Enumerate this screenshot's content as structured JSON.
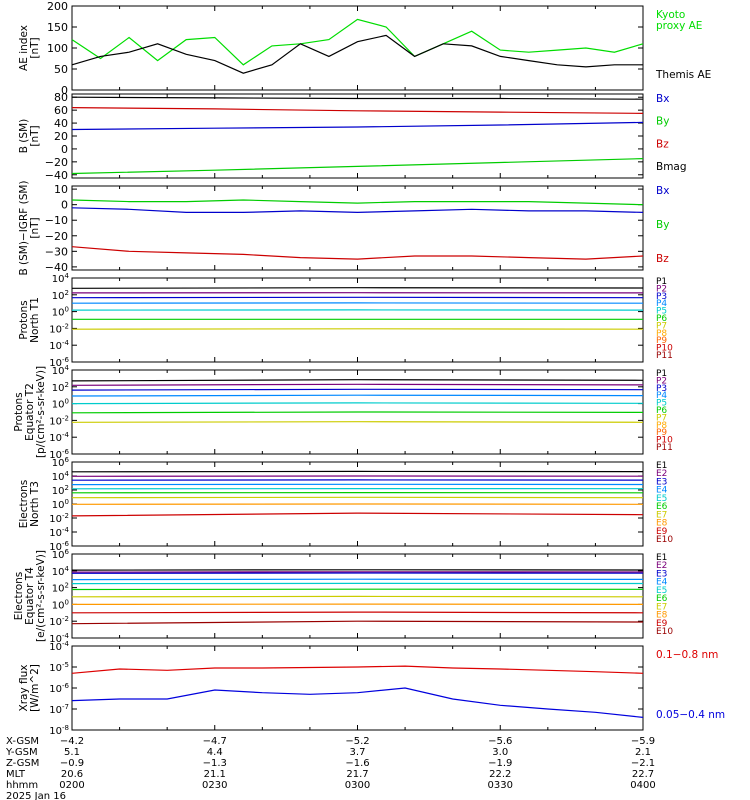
{
  "chart_data": [
    {
      "type": "line",
      "ylabel": "AE index\n[nT]",
      "ylim": [
        0,
        200
      ],
      "yticks": [
        0,
        50,
        100,
        150,
        200
      ],
      "yticklabels": [
        "0",
        "50",
        "100",
        "150",
        "200"
      ],
      "series": [
        {
          "name": "Kyoto\nproxy AE",
          "color": "#00dd00",
          "t": [
            0,
            6,
            12,
            18,
            24,
            30,
            36,
            42,
            48,
            54,
            60,
            66,
            72,
            78,
            84,
            90,
            96,
            102,
            108,
            114,
            120
          ],
          "values": [
            120,
            75,
            125,
            70,
            120,
            125,
            60,
            105,
            110,
            120,
            168,
            150,
            80,
            110,
            140,
            95,
            90,
            95,
            100,
            90,
            110
          ]
        },
        {
          "name": "Themis AE",
          "color": "#000000",
          "t": [
            0,
            6,
            12,
            18,
            24,
            30,
            36,
            42,
            48,
            54,
            60,
            66,
            72,
            78,
            84,
            90,
            96,
            102,
            108,
            114,
            120
          ],
          "values": [
            60,
            80,
            90,
            110,
            85,
            70,
            40,
            60,
            110,
            80,
            115,
            130,
            80,
            110,
            105,
            80,
            70,
            60,
            55,
            60,
            60
          ]
        }
      ]
    },
    {
      "type": "line",
      "ylabel": "B (SM)\n[nT]",
      "ylim": [
        -45,
        85
      ],
      "yticks": [
        -40,
        -20,
        0,
        20,
        40,
        60,
        80
      ],
      "yticklabels": [
        "−40",
        "−20",
        "0",
        "20",
        "40",
        "60",
        "80"
      ],
      "series": [
        {
          "name": "Bx",
          "color": "#0000cc",
          "t": [
            0,
            30,
            60,
            90,
            120
          ],
          "values": [
            30,
            32,
            34,
            37,
            41
          ]
        },
        {
          "name": "By",
          "color": "#00cc00",
          "t": [
            0,
            30,
            60,
            90,
            120
          ],
          "values": [
            -38,
            -33,
            -27,
            -21,
            -15
          ]
        },
        {
          "name": "Bz",
          "color": "#cc0000",
          "t": [
            0,
            30,
            60,
            90,
            120
          ],
          "values": [
            64,
            62,
            59,
            57,
            55
          ]
        },
        {
          "name": "Bmag",
          "color": "#000000",
          "t": [
            0,
            30,
            60,
            90,
            120
          ],
          "values": [
            80,
            79,
            78,
            78,
            77
          ]
        }
      ]
    },
    {
      "type": "line",
      "ylabel": "B (SM)−IGRF (SM)\n[nT]",
      "ylim": [
        -42,
        12
      ],
      "yticks": [
        -40,
        -30,
        -20,
        -10,
        0,
        10
      ],
      "yticklabels": [
        "−40",
        "−30",
        "−20",
        "−10",
        "0",
        "10"
      ],
      "series": [
        {
          "name": "Bx",
          "color": "#0000cc",
          "t": [
            0,
            12,
            24,
            36,
            48,
            60,
            72,
            84,
            96,
            108,
            120
          ],
          "values": [
            -2,
            -3,
            -5,
            -5,
            -4,
            -5,
            -4,
            -3,
            -4,
            -4,
            -5
          ]
        },
        {
          "name": "By",
          "color": "#00cc00",
          "t": [
            0,
            12,
            24,
            36,
            48,
            60,
            72,
            84,
            96,
            108,
            120
          ],
          "values": [
            3,
            2,
            2,
            3,
            2,
            1,
            2,
            2,
            2,
            1,
            0
          ]
        },
        {
          "name": "Bz",
          "color": "#cc0000",
          "t": [
            0,
            12,
            24,
            36,
            48,
            60,
            72,
            84,
            96,
            108,
            120
          ],
          "values": [
            -27,
            -30,
            -31,
            -32,
            -34,
            -35,
            -33,
            -33,
            -34,
            -35,
            -33
          ]
        }
      ]
    },
    {
      "type": "line",
      "ylabel": "Protons\nNorth T1",
      "ylog": true,
      "ylim": [
        1e-06,
        10000.0
      ],
      "yticks": [
        1e-06,
        0.0001,
        0.01,
        1.0,
        100.0,
        10000.0
      ],
      "yticklabels": [
        "10^-6",
        "10^-4",
        "10^-2",
        "10^0",
        "10^2",
        "10^4"
      ],
      "series": [
        {
          "name": "P1",
          "color": "#000000",
          "t": [
            0,
            60,
            120
          ],
          "values": [
            600,
            700,
            650
          ]
        },
        {
          "name": "P2",
          "color": "#7a007a",
          "t": [
            0,
            60,
            120
          ],
          "values": [
            170,
            180,
            170
          ]
        },
        {
          "name": "P3",
          "color": "#0000cc",
          "t": [
            0,
            60,
            120
          ],
          "values": [
            45,
            50,
            45
          ]
        },
        {
          "name": "P4",
          "color": "#0088ff",
          "t": [
            0,
            60,
            120
          ],
          "values": [
            10,
            11,
            10
          ]
        },
        {
          "name": "P5",
          "color": "#00cccc",
          "t": [
            0,
            60,
            120
          ],
          "values": [
            1.5,
            1.6,
            1.5
          ]
        },
        {
          "name": "P6",
          "color": "#00cc00",
          "t": [
            0,
            60,
            120
          ],
          "values": [
            0.12,
            0.12,
            0.12
          ]
        },
        {
          "name": "P7",
          "color": "#cccc00",
          "t": [
            0,
            60,
            120
          ],
          "values": [
            0.008,
            0.009,
            0.008
          ]
        },
        {
          "name": "P8",
          "color": "#ffaa00",
          "t": [],
          "values": []
        },
        {
          "name": "P9",
          "color": "#ff6600",
          "t": [],
          "values": []
        },
        {
          "name": "P10",
          "color": "#cc0000",
          "t": [],
          "values": []
        },
        {
          "name": "P11",
          "color": "#990000",
          "t": [],
          "values": []
        }
      ]
    },
    {
      "type": "line",
      "ylabel": "Protons\nEquator T2\n[p/(cm²-s-sr-keV)]",
      "ylog": true,
      "ylim": [
        1e-06,
        10000.0
      ],
      "yticks": [
        1e-06,
        0.0001,
        0.01,
        1.0,
        100.0,
        10000.0
      ],
      "yticklabels": [
        "10^-6",
        "10^-4",
        "10^-2",
        "10^0",
        "10^2",
        "10^4"
      ],
      "series": [
        {
          "name": "P1",
          "color": "#000000",
          "t": [
            0,
            60,
            120
          ],
          "values": [
            500,
            700,
            600
          ]
        },
        {
          "name": "P2",
          "color": "#7a007a",
          "t": [
            0,
            60,
            120
          ],
          "values": [
            150,
            200,
            170
          ]
        },
        {
          "name": "P3",
          "color": "#0000cc",
          "t": [
            0,
            60,
            120
          ],
          "values": [
            40,
            50,
            45
          ]
        },
        {
          "name": "P4",
          "color": "#0088ff",
          "t": [
            0,
            60,
            120
          ],
          "values": [
            8,
            10,
            9
          ]
        },
        {
          "name": "P5",
          "color": "#00cccc",
          "t": [
            0,
            60,
            120
          ],
          "values": [
            1,
            1.2,
            1.1
          ]
        },
        {
          "name": "P6",
          "color": "#00cc00",
          "t": [
            0,
            60,
            120
          ],
          "values": [
            0.08,
            0.1,
            0.09
          ]
        },
        {
          "name": "P7",
          "color": "#cccc00",
          "t": [
            0,
            60,
            120
          ],
          "values": [
            0.006,
            0.007,
            0.006
          ]
        },
        {
          "name": "P8",
          "color": "#ffaa00",
          "t": [],
          "values": []
        },
        {
          "name": "P9",
          "color": "#ff6600",
          "t": [],
          "values": []
        },
        {
          "name": "P10",
          "color": "#cc0000",
          "t": [],
          "values": []
        },
        {
          "name": "P11",
          "color": "#990000",
          "t": [],
          "values": []
        }
      ]
    },
    {
      "type": "line",
      "ylabel": "Electrons\nNorth T3",
      "ylog": true,
      "ylim": [
        1e-06,
        1000000.0
      ],
      "yticks": [
        1e-06,
        0.0001,
        0.01,
        1.0,
        100.0,
        10000.0,
        1000000.0
      ],
      "yticklabels": [
        "10^-6",
        "10^-4",
        "10^-2",
        "10^0",
        "10^2",
        "10^4",
        "10^6"
      ],
      "series": [
        {
          "name": "E1",
          "color": "#000000",
          "t": [
            0,
            60,
            120
          ],
          "values": [
            40000,
            45000,
            42000
          ]
        },
        {
          "name": "E2",
          "color": "#7a007a",
          "t": [
            0,
            60,
            120
          ],
          "values": [
            9000,
            10000,
            9500
          ]
        },
        {
          "name": "E3",
          "color": "#0000cc",
          "t": [
            0,
            60,
            120
          ],
          "values": [
            2500,
            2800,
            2600
          ]
        },
        {
          "name": "E4",
          "color": "#0088ff",
          "t": [
            0,
            60,
            120
          ],
          "values": [
            600,
            650,
            620
          ]
        },
        {
          "name": "E5",
          "color": "#00cccc",
          "t": [
            0,
            60,
            120
          ],
          "values": [
            150,
            160,
            155
          ]
        },
        {
          "name": "E6",
          "color": "#00cc00",
          "t": [
            0,
            60,
            120
          ],
          "values": [
            40,
            42,
            40
          ]
        },
        {
          "name": "E7",
          "color": "#cccc00",
          "t": [
            0,
            60,
            120
          ],
          "values": [
            8,
            9,
            8
          ]
        },
        {
          "name": "E8",
          "color": "#ff9900",
          "t": [
            0,
            60,
            120
          ],
          "values": [
            0.9,
            1,
            0.9
          ]
        },
        {
          "name": "E9",
          "color": "#cc0000",
          "t": [
            0,
            60,
            120
          ],
          "values": [
            0.02,
            0.05,
            0.03
          ]
        },
        {
          "name": "E10",
          "color": "#990000",
          "t": [],
          "values": []
        }
      ]
    },
    {
      "type": "line",
      "ylabel": "Electrons\nEquator T4\n[e/(cm²-s-sr-keV)]",
      "ylog": true,
      "ylim": [
        0.0001,
        1000000.0
      ],
      "yticks": [
        0.0001,
        0.01,
        1.0,
        100.0,
        10000.0,
        1000000.0
      ],
      "yticklabels": [
        "10^-4",
        "10^-2",
        "10^0",
        "10^2",
        "10^4",
        "10^6"
      ],
      "series": [
        {
          "name": "E1",
          "color": "#000000",
          "t": [
            0,
            60,
            120
          ],
          "values": [
            12000,
            13000,
            12500
          ]
        },
        {
          "name": "E2",
          "color": "#7a007a",
          "t": [
            0,
            60,
            120
          ],
          "values": [
            7000,
            7500,
            7200
          ]
        },
        {
          "name": "E3",
          "color": "#0000cc",
          "t": [
            0,
            60,
            120
          ],
          "values": [
            5000,
            5500,
            5200
          ]
        },
        {
          "name": "E4",
          "color": "#0088ff",
          "t": [
            0,
            60,
            120
          ],
          "values": [
            900,
            1000,
            950
          ]
        },
        {
          "name": "E5",
          "color": "#00cccc",
          "t": [
            0,
            60,
            120
          ],
          "values": [
            300,
            320,
            310
          ]
        },
        {
          "name": "E6",
          "color": "#00cc00",
          "t": [
            0,
            60,
            120
          ],
          "values": [
            60,
            65,
            62
          ]
        },
        {
          "name": "E7",
          "color": "#cccc00",
          "t": [
            0,
            60,
            120
          ],
          "values": [
            8,
            9,
            8
          ]
        },
        {
          "name": "E8",
          "color": "#ff9900",
          "t": [
            0,
            60,
            120
          ],
          "values": [
            1,
            1.1,
            1
          ]
        },
        {
          "name": "E9",
          "color": "#cc0000",
          "t": [
            0,
            60,
            120
          ],
          "values": [
            0.1,
            0.12,
            0.1
          ]
        },
        {
          "name": "E10",
          "color": "#990000",
          "t": [
            0,
            60,
            120
          ],
          "values": [
            0.005,
            0.01,
            0.008
          ]
        }
      ]
    },
    {
      "type": "line",
      "ylabel": "Xray flux\n[W/m^2]",
      "ylog": true,
      "ylim": [
        1e-08,
        0.0001
      ],
      "yticks": [
        1e-08,
        1e-07,
        1e-06,
        1e-05,
        0.0001
      ],
      "yticklabels": [
        "10^-8",
        "10^-7",
        "10^-6",
        "10^-5",
        "10^-4"
      ],
      "series": [
        {
          "name": "0.1−0.8 nm",
          "color": "#dd0000",
          "t": [
            0,
            10,
            20,
            30,
            40,
            50,
            60,
            70,
            80,
            90,
            100,
            110,
            120
          ],
          "values": [
            5e-06,
            8e-06,
            7e-06,
            9e-06,
            9e-06,
            9.5e-06,
            1e-05,
            1.1e-05,
            9e-06,
            8e-06,
            7e-06,
            6e-06,
            5e-06
          ]
        },
        {
          "name": "0.05−0.4 nm",
          "color": "#0000dd",
          "t": [
            0,
            10,
            20,
            30,
            40,
            50,
            60,
            70,
            80,
            90,
            100,
            110,
            120
          ],
          "values": [
            2.5e-07,
            3e-07,
            3e-07,
            8e-07,
            6e-07,
            5e-07,
            6e-07,
            1e-06,
            3e-07,
            1.5e-07,
            1e-07,
            7e-08,
            4e-08
          ]
        }
      ]
    }
  ],
  "xaxis": {
    "rows": [
      {
        "label": "X-GSM",
        "values": [
          "−4.2",
          "−4.7",
          "−5.2",
          "−5.6",
          "−5.9"
        ]
      },
      {
        "label": "Y-GSM",
        "values": [
          "5.1",
          "4.4",
          "3.7",
          "3.0",
          "2.1"
        ]
      },
      {
        "label": "Z-GSM",
        "values": [
          "−0.9",
          "−1.3",
          "−1.6",
          "−1.9",
          "−2.1"
        ]
      },
      {
        "label": "MLT",
        "values": [
          "20.6",
          "21.1",
          "21.7",
          "22.2",
          "22.7"
        ]
      },
      {
        "label": "hhmm",
        "values": [
          "0200",
          "0230",
          "0300",
          "0330",
          "0400"
        ]
      }
    ],
    "date": "2025 Jan 16"
  }
}
